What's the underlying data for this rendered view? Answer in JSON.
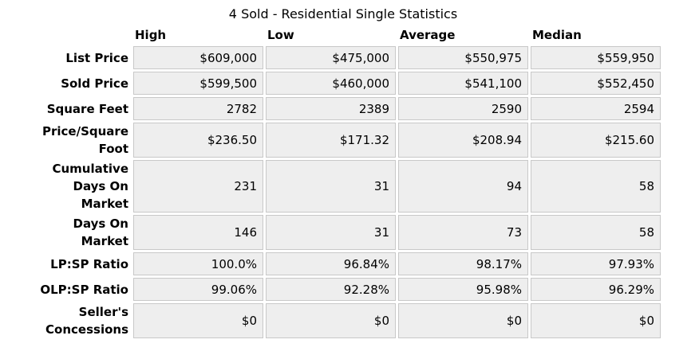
{
  "title": "4 Sold - Residential Single Statistics",
  "colors": {
    "page_bg": "#FFFFFF",
    "cell_bg": "#EEEEEE",
    "cell_border": "#C8C8C8",
    "text": "#000000"
  },
  "chart_data": {
    "type": "table",
    "title": "4 Sold - Residential Single Statistics",
    "columns": [
      "High",
      "Low",
      "Average",
      "Median"
    ],
    "rows": [
      {
        "label": "List Price",
        "values": [
          "$609,000",
          "$475,000",
          "$550,975",
          "$559,950"
        ]
      },
      {
        "label": "Sold Price",
        "values": [
          "$599,500",
          "$460,000",
          "$541,100",
          "$552,450"
        ]
      },
      {
        "label": "Square Feet",
        "values": [
          "2782",
          "2389",
          "2590",
          "2594"
        ]
      },
      {
        "label": "Price/Square\nFoot",
        "values": [
          "$236.50",
          "$171.32",
          "$208.94",
          "$215.60"
        ]
      },
      {
        "label": "Cumulative\nDays On\nMarket",
        "values": [
          "231",
          "31",
          "94",
          "58"
        ]
      },
      {
        "label": "Days On\nMarket",
        "values": [
          "146",
          "31",
          "73",
          "58"
        ]
      },
      {
        "label": "LP:SP Ratio",
        "values": [
          "100.0%",
          "96.84%",
          "98.17%",
          "97.93%"
        ]
      },
      {
        "label": "OLP:SP Ratio",
        "values": [
          "99.06%",
          "92.28%",
          "95.98%",
          "96.29%"
        ]
      },
      {
        "label": "Seller's\nConcessions",
        "values": [
          "$0",
          "$0",
          "$0",
          "$0"
        ]
      }
    ]
  }
}
